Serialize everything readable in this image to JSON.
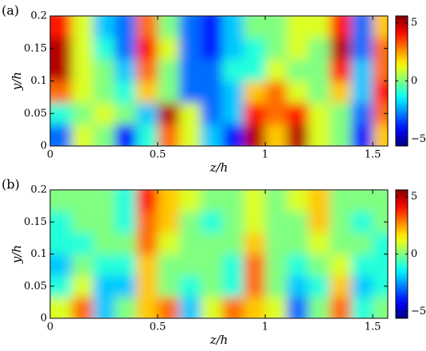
{
  "chart_data": [
    {
      "type": "heatmap",
      "panel_label": "(a)",
      "xlabel": "z/h",
      "ylabel": "y/h",
      "colormap": "jet",
      "xlim": [
        0,
        1.57
      ],
      "ylim": [
        0,
        0.2
      ],
      "xticks": [
        0,
        0.5,
        1,
        1.5
      ],
      "yticks": [
        0,
        0.05,
        0.1,
        0.15,
        0.2
      ],
      "clim": [
        -5.6,
        5.6
      ],
      "cticks": [
        5,
        0,
        {
          "value": -5,
          "label": "−5"
        }
      ],
      "x": [
        0.05,
        0.15,
        0.25,
        0.35,
        0.45,
        0.55,
        0.65,
        0.75,
        0.85,
        0.95,
        1.05,
        1.15,
        1.25,
        1.35,
        1.45,
        1.55
      ],
      "y": [
        0.017,
        0.05,
        0.083,
        0.117,
        0.15,
        0.183
      ],
      "z": [
        [
          -3,
          1,
          0,
          -4,
          -1,
          3,
          1,
          -2,
          -4,
          5,
          2,
          5,
          1,
          0,
          -4,
          2
        ],
        [
          -1,
          0,
          1,
          0,
          -2,
          5,
          1,
          -3,
          -2,
          4,
          3,
          4,
          1,
          0,
          -3,
          3
        ],
        [
          3,
          1,
          0,
          -1,
          2,
          0,
          -3,
          -3,
          -2,
          2,
          3,
          1,
          0,
          2,
          -2,
          4
        ],
        [
          5,
          1,
          0,
          -2,
          3,
          0,
          -3,
          -3,
          -1,
          -1,
          1,
          0,
          0,
          4,
          -2,
          3
        ],
        [
          5,
          1,
          -1,
          -3,
          4,
          1,
          -3,
          -4,
          -2,
          -1,
          0,
          1,
          0,
          5,
          -3,
          3
        ],
        [
          4,
          1,
          -2,
          -3,
          3,
          0,
          -3,
          -4,
          -2,
          0,
          0,
          1,
          1,
          4,
          -3,
          2
        ]
      ]
    },
    {
      "type": "heatmap",
      "panel_label": "(b)",
      "xlabel": "z/h",
      "ylabel": "y/h",
      "colormap": "jet",
      "xlim": [
        0,
        1.57
      ],
      "ylim": [
        0,
        0.2
      ],
      "xticks": [
        0,
        0.5,
        1,
        1.5
      ],
      "yticks": [
        0,
        0.05,
        0.1,
        0.15,
        0.2
      ],
      "clim": [
        -5.6,
        5.6
      ],
      "cticks": [
        5,
        0,
        {
          "value": -5,
          "label": "−5"
        }
      ],
      "x": [
        0.05,
        0.15,
        0.25,
        0.35,
        0.45,
        0.55,
        0.65,
        0.75,
        0.85,
        0.95,
        1.05,
        1.15,
        1.25,
        1.35,
        1.45,
        1.55
      ],
      "y": [
        0.017,
        0.05,
        0.083,
        0.117,
        0.15,
        0.183
      ],
      "z": [
        [
          1,
          3,
          -2,
          0,
          2,
          3,
          -2,
          1,
          3,
          2,
          1,
          -3,
          0,
          3,
          -1,
          0
        ],
        [
          -1,
          1,
          -2,
          -2,
          2,
          0,
          -1,
          0,
          -1,
          3,
          0,
          -2,
          -1,
          2,
          -2,
          -1
        ],
        [
          -2,
          0,
          -1,
          -1,
          2,
          0,
          0,
          0,
          -1,
          3,
          0,
          -1,
          0,
          1,
          -1,
          -1
        ],
        [
          -1,
          -1,
          0,
          0,
          3,
          1,
          0,
          0,
          0,
          2,
          0,
          0,
          1,
          0,
          0,
          -1
        ],
        [
          -1,
          0,
          0,
          -1,
          3,
          2,
          0,
          -1,
          0,
          1,
          0,
          0,
          2,
          0,
          -1,
          0
        ],
        [
          0,
          0,
          0,
          -1,
          4,
          2,
          1,
          0,
          0,
          1,
          0,
          1,
          2,
          0,
          0,
          0
        ]
      ]
    }
  ]
}
